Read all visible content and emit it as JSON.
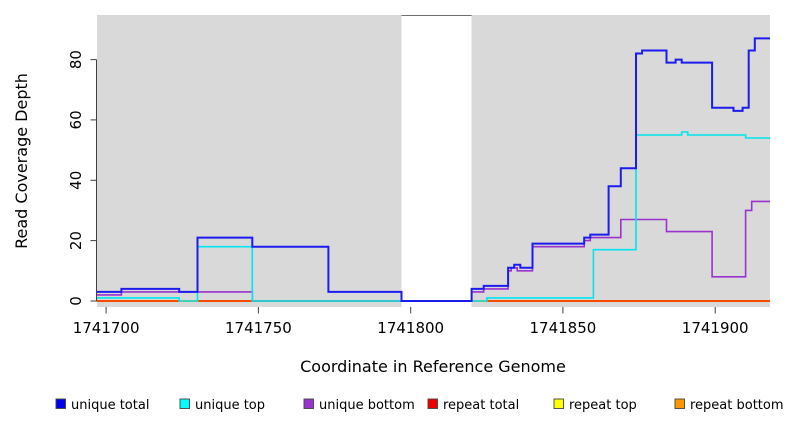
{
  "figure": {
    "x_axis_label": "Coordinate in Reference Genome",
    "y_axis_label": "Read Coverage Depth"
  },
  "chart_data": {
    "type": "line",
    "subtype": "step",
    "title": "",
    "xlabel": "Coordinate in Reference Genome",
    "ylabel": "Read Coverage Depth",
    "x_range": [
      1741697,
      1741918
    ],
    "y_range": [
      -2,
      95
    ],
    "x_ticks": [
      1741700,
      1741750,
      1741800,
      1741850,
      1741900
    ],
    "y_ticks": [
      0,
      20,
      40,
      60,
      80
    ],
    "grid": "off",
    "plot_background": "#D9D9D9",
    "masked_region": {
      "from": 1741797,
      "to": 1741820,
      "color": "#FFFFFF"
    },
    "legend_position": "bottom",
    "legend": [
      {
        "label": "unique total",
        "color": "#0000EE"
      },
      {
        "label": "unique top",
        "color": "#00FFFF"
      },
      {
        "label": "unique bottom",
        "color": "#9A32CD"
      },
      {
        "label": "repeat total",
        "color": "#EE0000"
      },
      {
        "label": "repeat top",
        "color": "#FFFF00"
      },
      {
        "label": "repeat bottom",
        "color": "#FF9800"
      }
    ],
    "series": [
      {
        "name": "repeat top",
        "color": "#FFFF00",
        "width": 1.4,
        "points": [
          [
            1741697,
            0
          ]
        ]
      },
      {
        "name": "repeat bottom",
        "color": "#FF9800",
        "width": 2.0,
        "points": [
          [
            1741697,
            0
          ]
        ]
      },
      {
        "name": "repeat total",
        "color": "#EE0000",
        "width": 1.1,
        "points": [
          [
            1741697,
            0
          ]
        ]
      },
      {
        "name": "unique bottom",
        "color": "#9A32CD",
        "width": 1.6,
        "points": [
          [
            1741697,
            2
          ],
          [
            1741705,
            3
          ],
          [
            1741748,
            0
          ],
          [
            1741820,
            3
          ],
          [
            1741824,
            4
          ],
          [
            1741832,
            10
          ],
          [
            1741833,
            11
          ],
          [
            1741835,
            10
          ],
          [
            1741840,
            18
          ],
          [
            1741857,
            20
          ],
          [
            1741859,
            21
          ],
          [
            1741869,
            27
          ],
          [
            1741884,
            23
          ],
          [
            1741899,
            8
          ],
          [
            1741910,
            30
          ],
          [
            1741912,
            33
          ]
        ]
      },
      {
        "name": "unique top",
        "color": "#00E5EE",
        "width": 1.6,
        "points": [
          [
            1741697,
            1
          ],
          [
            1741724,
            0
          ],
          [
            1741730,
            18
          ],
          [
            1741748,
            0
          ],
          [
            1741825,
            1
          ],
          [
            1741860,
            17
          ],
          [
            1741874,
            55
          ],
          [
            1741889,
            56
          ],
          [
            1741891,
            55
          ],
          [
            1741910,
            54
          ]
        ]
      },
      {
        "name": "unique total",
        "color": "#1C1CEE",
        "width": 2.0,
        "points": [
          [
            1741697,
            3
          ],
          [
            1741705,
            4
          ],
          [
            1741724,
            3
          ],
          [
            1741730,
            21
          ],
          [
            1741748,
            18
          ],
          [
            1741773,
            3
          ],
          [
            1741797,
            0
          ],
          [
            1741820,
            4
          ],
          [
            1741824,
            5
          ],
          [
            1741832,
            11
          ],
          [
            1741834,
            12
          ],
          [
            1741836,
            11
          ],
          [
            1741840,
            19
          ],
          [
            1741857,
            21
          ],
          [
            1741859,
            22
          ],
          [
            1741865,
            38
          ],
          [
            1741869,
            44
          ],
          [
            1741874,
            82
          ],
          [
            1741876,
            83
          ],
          [
            1741884,
            79
          ],
          [
            1741887,
            80
          ],
          [
            1741889,
            79
          ],
          [
            1741899,
            64
          ],
          [
            1741906,
            63
          ],
          [
            1741909,
            64
          ],
          [
            1741911,
            83
          ],
          [
            1741913,
            87
          ]
        ]
      }
    ]
  }
}
